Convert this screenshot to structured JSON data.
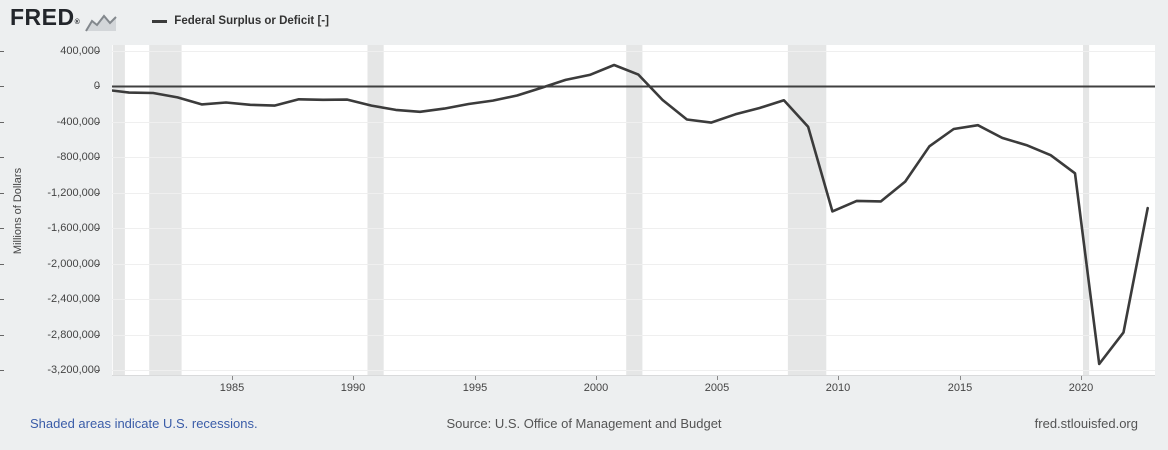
{
  "header": {
    "logo_text": "FRED",
    "logo_registered": "®",
    "legend": {
      "marker": "—",
      "label": "Federal Surplus or Deficit [-]"
    }
  },
  "chart_data": {
    "type": "line",
    "title": "Federal Surplus or Deficit [-]",
    "xlabel": "",
    "ylabel": "Millions of Dollars",
    "grid": true,
    "legend_position": "top-left",
    "x_domain": [
      1980.05,
      2023.05
    ],
    "y_domain": [
      462000,
      -3256000
    ],
    "x_ticks": [
      1985,
      1990,
      1995,
      2000,
      2005,
      2010,
      2015,
      2020
    ],
    "y_ticks": [
      400000,
      0,
      -400000,
      -800000,
      -1200000,
      -1600000,
      -2000000,
      -2400000,
      -2800000,
      -3200000
    ],
    "x_offset_years": 0.75,
    "series": [
      {
        "name": "Federal Surplus or Deficit [-]",
        "color": "#3b3b3b",
        "x": [
          1979,
          1980,
          1981,
          1982,
          1983,
          1984,
          1985,
          1986,
          1987,
          1988,
          1989,
          1990,
          1991,
          1992,
          1993,
          1994,
          1995,
          1996,
          1997,
          1998,
          1999,
          2000,
          2001,
          2002,
          2003,
          2004,
          2005,
          2006,
          2007,
          2008,
          2009,
          2010,
          2011,
          2012,
          2013,
          2014,
          2015,
          2016,
          2017,
          2018,
          2019,
          2020,
          2021,
          2022
        ],
        "values": [
          -40717,
          -73830,
          -78968,
          -127977,
          -207802,
          -185367,
          -212308,
          -221227,
          -149730,
          -155178,
          -152639,
          -221036,
          -269238,
          -290321,
          -255051,
          -203186,
          -163952,
          -107431,
          -21884,
          69270,
          125610,
          236241,
          128236,
          -157758,
          -377585,
          -412727,
          -318346,
          -248181,
          -160701,
          -458553,
          -1412688,
          -1294373,
          -1299595,
          -1076573,
          -679545,
          -484602,
          -441960,
          -584651,
          -665446,
          -779137,
          -983592,
          -3131917,
          -2775535,
          -1375389
        ]
      }
    ],
    "recessions": [
      [
        1980.083,
        1980.583
      ],
      [
        1981.583,
        1982.917
      ],
      [
        1990.583,
        1991.25
      ],
      [
        2001.25,
        2001.917
      ],
      [
        2007.917,
        2009.5
      ],
      [
        2020.083,
        2020.333
      ]
    ],
    "colors": {
      "series": "#3b3b3b",
      "recession_band": "#e5e6e6",
      "gridline": "#efefef",
      "zero_line": "#404040",
      "background": "#edeff0",
      "plot_background": "#ffffff",
      "axis_text": "#444444",
      "link": "#3a5ca8"
    }
  },
  "footer": {
    "recession_note": "Shaded areas indicate U.S. recessions.",
    "source": "Source: U.S. Office of Management and Budget",
    "site": "fred.stlouisfed.org"
  }
}
